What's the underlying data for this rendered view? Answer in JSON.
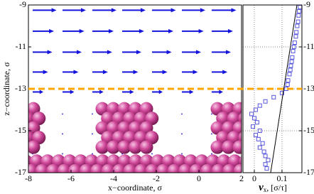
{
  "chart_data": [
    {
      "type": "quiver",
      "xlabel": "x−coordinate, σ",
      "ylabel": "z−coordinate, σ",
      "xlim": [
        -8,
        2
      ],
      "ylim": [
        -17,
        -9
      ],
      "xticks": [
        -8,
        -6,
        -4,
        -2,
        0,
        2
      ],
      "yticks": [
        -17,
        -15,
        -13,
        -11,
        -9
      ],
      "color": "#1515dd",
      "x": [
        -7.8,
        -6.4,
        -5,
        -3.6,
        -2.2,
        -0.8,
        0.6
      ],
      "rows": [
        {
          "z": -9.25,
          "u": [
            1.12,
            1.1,
            1.13,
            1.1,
            1.12,
            1.1,
            1.15
          ]
        },
        {
          "z": -10.25,
          "u": [
            1.0,
            1.02,
            1.0,
            1.03,
            1.0,
            1.02,
            1.0
          ]
        },
        {
          "z": -11.25,
          "u": [
            0.92,
            0.9,
            0.93,
            0.9,
            0.92,
            0.9,
            0.9
          ]
        },
        {
          "z": -12.2,
          "u": [
            0.72,
            0.75,
            0.73,
            0.75,
            0.72,
            0.75,
            0.74
          ]
        },
        {
          "z": -13.15,
          "u": [
            0.5,
            0.55,
            0.52,
            0.55,
            0.5,
            0.55,
            0.53
          ]
        },
        {
          "z": -14.2,
          "u": [
            0.05,
            0.05,
            0.05,
            0.05,
            0.05,
            0.05,
            0.05
          ]
        },
        {
          "z": -15.15,
          "u": [
            0.04,
            0.04,
            0.04,
            0.04,
            0.04,
            0.04,
            0.04
          ]
        },
        {
          "z": -16.1,
          "u": [
            0.03,
            0.03,
            0.03,
            0.03,
            0.03,
            0.03,
            0.03
          ]
        }
      ],
      "hline": {
        "value": -13,
        "color": "#ffa500"
      },
      "atom_color": "#d24a9c"
    },
    {
      "type": "scatter",
      "xlabel": {
        "symbol": "v",
        "subscript": "x",
        "unit": ", [σ/τ]"
      },
      "xlim": [
        -0.041,
        0.172
      ],
      "ylim": [
        -17,
        -9
      ],
      "xticks": [
        0,
        0.1
      ],
      "yticks": [
        -9,
        -11,
        -13,
        -15,
        -17
      ],
      "grid": true,
      "series": [
        {
          "color": "#5555dd",
          "marker": "square",
          "x": [
            0.165,
            0.162,
            0.16,
            0.158,
            0.155,
            0.152,
            0.15,
            0.146,
            0.143,
            0.14,
            0.137,
            0.135,
            0.132,
            0.13,
            0.127,
            0.122,
            0.12,
            0.115,
            0.1,
            0.07,
            0.04,
            0.02,
            0.005,
            -0.01,
            0.0,
            0.01,
            -0.005,
            0.02,
            0.005,
            0.015,
            0.03,
            0.02,
            0.035,
            0.04,
            0.05,
            0.04,
            0.045
          ],
          "y": [
            -9.1,
            -9.3,
            -9.5,
            -9.8,
            -10.0,
            -10.3,
            -10.5,
            -10.8,
            -11.0,
            -11.2,
            -11.5,
            -11.7,
            -11.9,
            -12.1,
            -12.3,
            -12.6,
            -12.8,
            -13.0,
            -13.2,
            -13.4,
            -13.6,
            -13.8,
            -14.0,
            -14.2,
            -14.4,
            -14.6,
            -14.8,
            -15.0,
            -15.2,
            -15.4,
            -15.6,
            -15.8,
            -16.0,
            -16.2,
            -16.4,
            -16.6,
            -16.8
          ]
        },
        {
          "color": "#000000",
          "marker": "line",
          "x": [
            0.059,
            0.154
          ],
          "y": [
            -17,
            -9
          ]
        }
      ]
    }
  ]
}
